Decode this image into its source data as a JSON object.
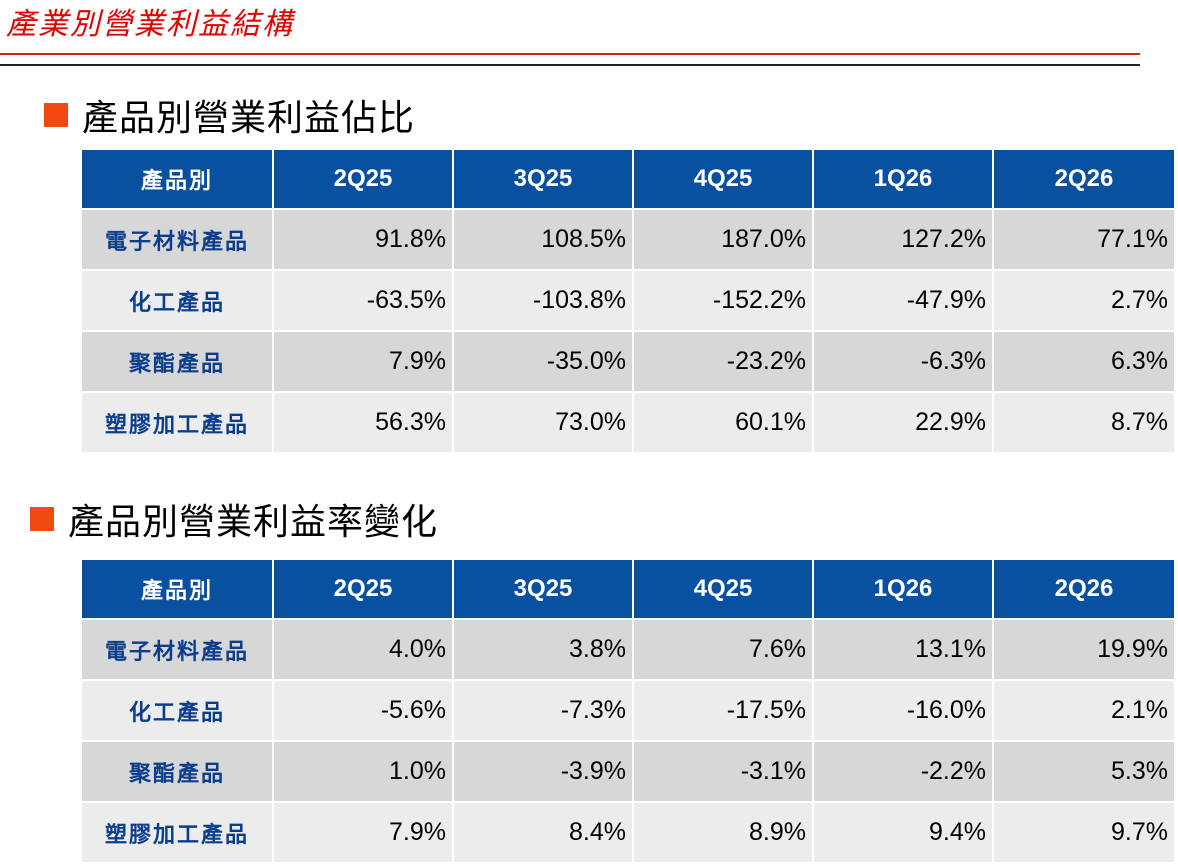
{
  "page_title": "產業別營業利益結構",
  "tables": [
    {
      "heading": "產品別營業利益佔比",
      "header": [
        "產品別",
        "2Q25",
        "3Q25",
        "4Q25",
        "1Q26",
        "2Q26"
      ],
      "rows": [
        {
          "label": "電子材料產品",
          "values": [
            "91.8%",
            "108.5%",
            "187.0%",
            "127.2%",
            "77.1%"
          ]
        },
        {
          "label": "化工產品",
          "values": [
            "-63.5%",
            "-103.8%",
            "-152.2%",
            "-47.9%",
            "2.7%"
          ]
        },
        {
          "label": "聚酯產品",
          "values": [
            "7.9%",
            "-35.0%",
            "-23.2%",
            "-6.3%",
            "6.3%"
          ]
        },
        {
          "label": "塑膠加工產品",
          "values": [
            "56.3%",
            "73.0%",
            "60.1%",
            "22.9%",
            "8.7%"
          ]
        }
      ]
    },
    {
      "heading": "產品別營業利益率變化",
      "header": [
        "產品別",
        "2Q25",
        "3Q25",
        "4Q25",
        "1Q26",
        "2Q26"
      ],
      "rows": [
        {
          "label": "電子材料產品",
          "values": [
            "4.0%",
            "3.8%",
            "7.6%",
            "13.1%",
            "19.9%"
          ]
        },
        {
          "label": "化工產品",
          "values": [
            "-5.6%",
            "-7.3%",
            "-17.5%",
            "-16.0%",
            "2.1%"
          ]
        },
        {
          "label": "聚酯產品",
          "values": [
            "1.0%",
            "-3.9%",
            "-3.1%",
            "-2.2%",
            "5.3%"
          ]
        },
        {
          "label": "塑膠加工產品",
          "values": [
            "7.9%",
            "8.4%",
            "8.9%",
            "9.4%",
            "9.7%"
          ]
        }
      ]
    }
  ],
  "colors": {
    "title_red": "#e00000",
    "header_blue": "#0a50a0",
    "label_blue": "#0a3d8c",
    "bullet_orange": "#f04a12"
  }
}
